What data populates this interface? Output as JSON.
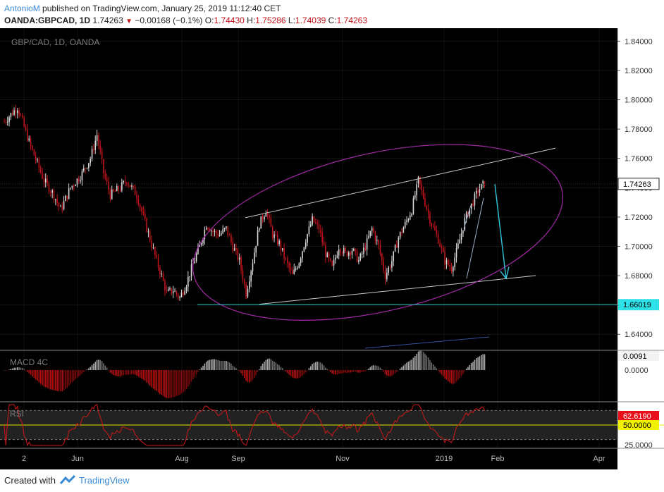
{
  "header": {
    "author": "AntonioM",
    "published_text": "published on TradingView.com, January 25, 2019 11:12:40 CET",
    "symbol": "OANDA:GBPCAD, 1D",
    "last": "1.74263",
    "change": "−0.00168 (−0.1%)",
    "o_label": "O:",
    "o_value": "1.74430",
    "h_label": "H:",
    "h_value": "1.75286",
    "l_label": "L:",
    "l_value": "1.74039",
    "c_label": "C:",
    "c_value": "1.74263"
  },
  "footer": {
    "created_with": "Created with",
    "brand": "TradingView"
  },
  "colors": {
    "background": "#000000",
    "up_candle": "#d9d9d9",
    "down_candle": "#c0141a",
    "channel": "#c8c8c8",
    "ellipse": "#a12aa8",
    "support": "#2ec8c8",
    "arrow": "#2ec8e0",
    "macd_bull": "#aaaaaa",
    "macd_bear": "#b01010",
    "rsi_line": "#d01818",
    "rsi_mid": "#e8e800"
  },
  "chart_data": {
    "type": "candlestick",
    "watermark": "GBP/CAD, 1D, OANDA",
    "x_ticks": [
      "2",
      "Jun",
      "Aug",
      "Sep",
      "Nov",
      "2019",
      "Feb",
      "Apr"
    ],
    "y_ticks": [
      "1.84000",
      "1.82000",
      "1.80000",
      "1.78000",
      "1.76000",
      "1.74000",
      "1.72000",
      "1.70000",
      "1.68000",
      "1.66000",
      "1.64000"
    ],
    "ylim": [
      1.63,
      1.845
    ],
    "last_price_label": "1.74263",
    "support_label": "1.66019",
    "support_level": 1.66019,
    "macd": {
      "label": "MACD 4C",
      "value_label": "0.0091",
      "tick_label": "0.0000"
    },
    "rsi": {
      "label": "RSI",
      "value_label": "62.6190",
      "mid_label": "50.0000",
      "low_tick": "25.0000",
      "ylim": [
        20,
        80
      ]
    },
    "close_path": [
      [
        0,
        1.785
      ],
      [
        8,
        1.795
      ],
      [
        16,
        1.768
      ],
      [
        24,
        1.745
      ],
      [
        30,
        1.735
      ],
      [
        34,
        1.725
      ],
      [
        40,
        1.74
      ],
      [
        46,
        1.748
      ],
      [
        52,
        1.76
      ],
      [
        56,
        1.776
      ],
      [
        60,
        1.75
      ],
      [
        64,
        1.735
      ],
      [
        70,
        1.74
      ],
      [
        74,
        1.745
      ],
      [
        80,
        1.735
      ],
      [
        84,
        1.72
      ],
      [
        88,
        1.705
      ],
      [
        92,
        1.69
      ],
      [
        95,
        1.68
      ],
      [
        98,
        1.668
      ],
      [
        102,
        1.67
      ],
      [
        106,
        1.665
      ],
      [
        110,
        1.675
      ],
      [
        114,
        1.688
      ],
      [
        118,
        1.7
      ],
      [
        122,
        1.715
      ],
      [
        126,
        1.71
      ],
      [
        130,
        1.708
      ],
      [
        134,
        1.712
      ],
      [
        138,
        1.7
      ],
      [
        142,
        1.69
      ],
      [
        146,
        1.668
      ],
      [
        150,
        1.69
      ],
      [
        154,
        1.715
      ],
      [
        158,
        1.725
      ],
      [
        162,
        1.708
      ],
      [
        166,
        1.702
      ],
      [
        170,
        1.69
      ],
      [
        174,
        1.68
      ],
      [
        178,
        1.69
      ],
      [
        182,
        1.705
      ],
      [
        186,
        1.718
      ],
      [
        190,
        1.712
      ],
      [
        194,
        1.695
      ],
      [
        198,
        1.685
      ],
      [
        202,
        1.7
      ],
      [
        206,
        1.695
      ],
      [
        210,
        1.698
      ],
      [
        214,
        1.69
      ],
      [
        218,
        1.7
      ],
      [
        222,
        1.712
      ],
      [
        226,
        1.7
      ],
      [
        230,
        1.68
      ],
      [
        234,
        1.69
      ],
      [
        238,
        1.706
      ],
      [
        242,
        1.715
      ],
      [
        246,
        1.725
      ],
      [
        250,
        1.745
      ],
      [
        254,
        1.73
      ],
      [
        258,
        1.715
      ],
      [
        262,
        1.705
      ],
      [
        266,
        1.69
      ],
      [
        270,
        1.685
      ],
      [
        274,
        1.7
      ],
      [
        278,
        1.718
      ],
      [
        282,
        1.728
      ],
      [
        286,
        1.738
      ],
      [
        290,
        1.743
      ]
    ]
  }
}
